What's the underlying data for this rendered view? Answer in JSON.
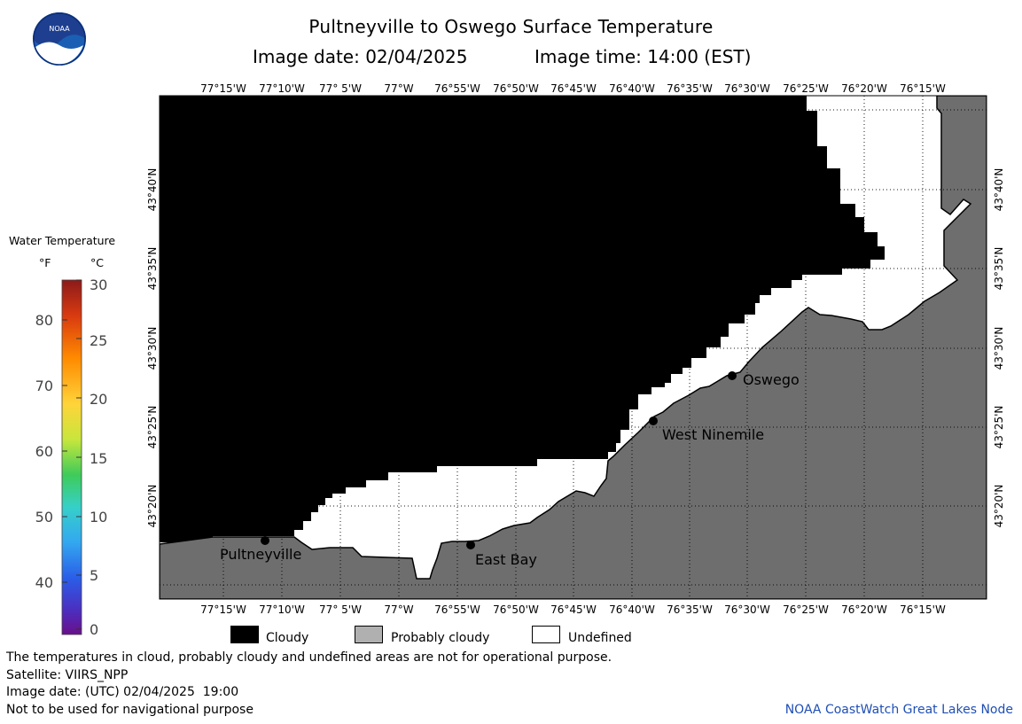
{
  "header": {
    "title": "Pultneyville to Oswego Surface Temperature",
    "image_date_label": "Image date: 02/04/2025",
    "image_time_label": "Image time: 14:00 (EST)"
  },
  "logo": {
    "text": "NOAA"
  },
  "map": {
    "lon_labels": [
      "77°15'W",
      "77°10'W",
      "77° 5'W",
      "77°W",
      "76°55'W",
      "76°50'W",
      "76°45'W",
      "76°40'W",
      "76°35'W",
      "76°30'W",
      "76°25'W",
      "76°20'W",
      "76°15'W"
    ],
    "lat_labels": [
      "43°40'N",
      "43°35'N",
      "43°30'N",
      "43°25'N",
      "43°20'N"
    ],
    "places": [
      {
        "name": "Oswego"
      },
      {
        "name": "West Ninemile"
      },
      {
        "name": "Pultneyville"
      },
      {
        "name": "East Bay"
      }
    ],
    "colors": {
      "cloud": "#000000",
      "land": "#6e6e6e",
      "undefined": "#ffffff",
      "coast": "#000000"
    }
  },
  "color_scale": {
    "title": "Water Temperature",
    "unit_f": "°F",
    "unit_c": "°C",
    "f_ticks": [
      "80",
      "70",
      "60",
      "50",
      "40"
    ],
    "c_ticks": [
      "30",
      "25",
      "20",
      "15",
      "10",
      "5",
      "0"
    ]
  },
  "legend": {
    "cloudy": "Cloudy",
    "probably_cloudy": "Probably cloudy",
    "undefined": "Undefined",
    "cloudy_color": "#000000",
    "probably_cloudy_color": "#b0b0b0",
    "undefined_color": "#ffffff"
  },
  "notes": {
    "line1": "The temperatures in cloud, probably cloudy and undefined areas are not for operational purpose.",
    "line2": "Satellite: VIIRS_NPP",
    "line3": "Image date: (UTC) 02/04/2025  19:00",
    "line4": "Not to be used for navigational purpose"
  },
  "credit": "NOAA CoastWatch Great Lakes Node"
}
